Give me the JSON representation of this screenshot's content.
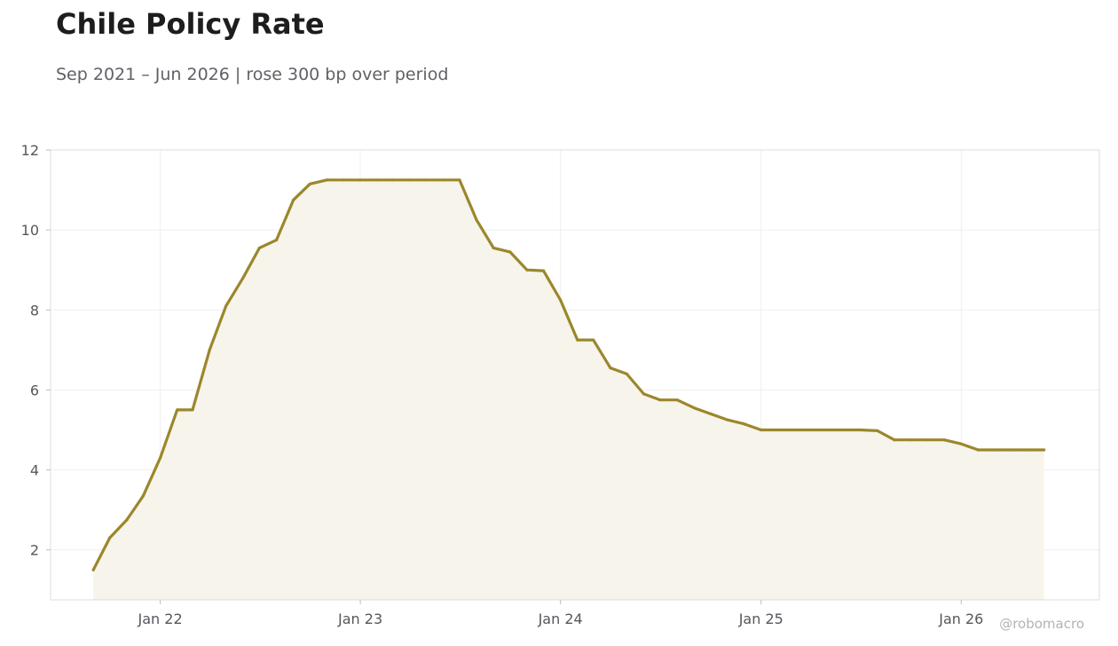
{
  "chart_data": {
    "type": "area",
    "title": "Chile Policy Rate",
    "subtitle": "Sep 2021 – Jun 2026 | rose 300 bp over period",
    "xlabel": "",
    "ylabel": "",
    "ylim": [
      0.75,
      12
    ],
    "xlim": [
      "2021-06-15",
      "2026-09-10"
    ],
    "grid": true,
    "yticks": [
      2,
      4,
      6,
      8,
      10,
      12
    ],
    "xticks": [
      {
        "date": "2022-01-01",
        "label": "Jan 22"
      },
      {
        "date": "2023-01-01",
        "label": "Jan 23"
      },
      {
        "date": "2024-01-01",
        "label": "Jan 24"
      },
      {
        "date": "2025-01-01",
        "label": "Jan 25"
      },
      {
        "date": "2026-01-01",
        "label": "Jan 26"
      }
    ],
    "line_color": "#9b872b",
    "fill_color": "#f7f4ec",
    "series": [
      {
        "x": [
          "2021-09-01",
          "2021-10-01",
          "2021-11-01",
          "2021-12-01",
          "2022-01-01",
          "2022-02-01",
          "2022-03-01",
          "2022-04-01",
          "2022-05-01",
          "2022-06-01",
          "2022-07-01",
          "2022-08-01",
          "2022-09-01",
          "2022-10-01",
          "2022-11-01",
          "2022-12-01",
          "2023-01-01",
          "2023-02-01",
          "2023-03-01",
          "2023-04-01",
          "2023-05-01",
          "2023-06-01",
          "2023-07-01",
          "2023-08-01",
          "2023-09-01",
          "2023-10-01",
          "2023-11-01",
          "2023-12-01",
          "2024-01-01",
          "2024-02-01",
          "2024-03-01",
          "2024-04-01",
          "2024-05-01",
          "2024-06-01",
          "2024-07-01",
          "2024-08-01",
          "2024-09-01",
          "2024-10-01",
          "2024-11-01",
          "2024-12-01",
          "2025-01-01",
          "2025-02-01",
          "2025-03-01",
          "2025-04-01",
          "2025-05-01",
          "2025-06-01",
          "2025-07-01",
          "2025-08-01",
          "2025-09-01",
          "2025-10-01",
          "2025-11-01",
          "2025-12-01",
          "2026-01-01",
          "2026-02-01",
          "2026-03-01",
          "2026-04-01",
          "2026-05-01",
          "2026-06-01"
        ],
        "values": [
          1.5,
          2.3,
          2.75,
          3.35,
          4.3,
          5.5,
          5.5,
          7.0,
          8.1,
          8.8,
          9.55,
          9.75,
          10.75,
          11.15,
          11.25,
          11.25,
          11.25,
          11.25,
          11.25,
          11.25,
          11.25,
          11.25,
          11.25,
          10.25,
          9.55,
          9.45,
          9.0,
          8.98,
          8.25,
          7.25,
          7.25,
          6.55,
          6.4,
          5.9,
          5.75,
          5.75,
          5.55,
          5.4,
          5.25,
          5.15,
          5.0,
          5.0,
          5.0,
          5.0,
          5.0,
          5.0,
          5.0,
          4.98,
          4.75,
          4.75,
          4.75,
          4.75,
          4.65,
          4.5,
          4.5,
          4.5,
          4.5,
          4.5
        ]
      }
    ]
  },
  "watermark": "@robomacro"
}
